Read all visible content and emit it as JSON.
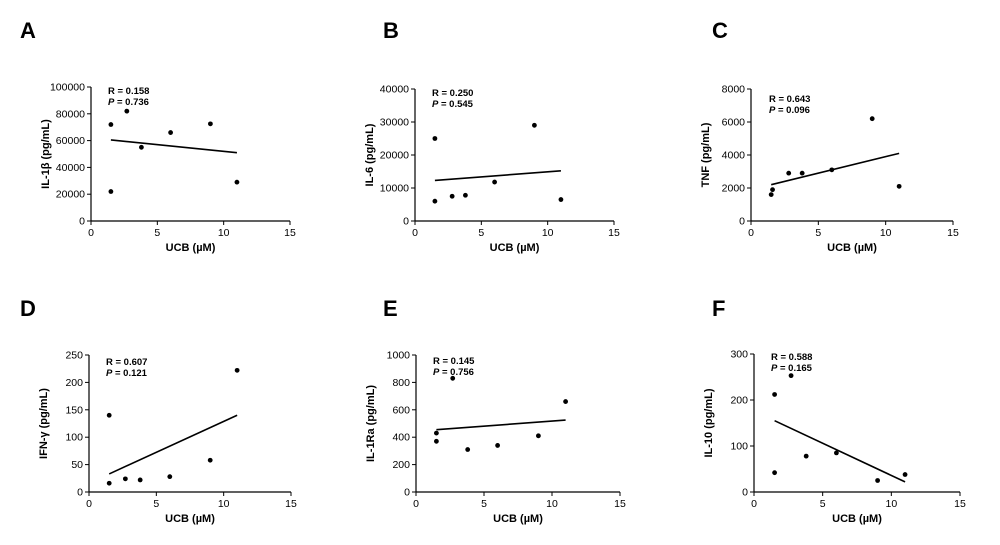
{
  "chart_data": [
    {
      "panel": "A",
      "type": "scatter",
      "ylabel": "IL-1β (pg/mL)",
      "xlabel": "UCB (µM)",
      "xlim": [
        0,
        15
      ],
      "ylim": [
        0,
        100000
      ],
      "xticks": [
        0,
        5,
        10,
        15
      ],
      "yticks": [
        0,
        20000,
        40000,
        60000,
        80000,
        100000
      ],
      "r_label": "R = 0.158",
      "p_prefix": "P",
      "p_value": " = 0.736",
      "points": [
        [
          1.5,
          72000
        ],
        [
          1.5,
          22000
        ],
        [
          2.7,
          82000
        ],
        [
          3.8,
          55000
        ],
        [
          6.0,
          66000
        ],
        [
          9.0,
          72500
        ],
        [
          11.0,
          29000
        ]
      ],
      "fit": [
        [
          1.5,
          60500
        ],
        [
          11.0,
          51000
        ]
      ]
    },
    {
      "panel": "B",
      "type": "scatter",
      "ylabel": "IL-6 (pg/mL)",
      "xlabel": "UCB (µM)",
      "xlim": [
        0,
        15
      ],
      "ylim": [
        0,
        40000
      ],
      "xticks": [
        0,
        5,
        10,
        15
      ],
      "yticks": [
        0,
        10000,
        20000,
        30000,
        40000
      ],
      "r_label": "R = 0.250",
      "p_prefix": "P",
      "p_value": " = 0.545",
      "points": [
        [
          1.5,
          25000
        ],
        [
          1.5,
          6000
        ],
        [
          2.8,
          7500
        ],
        [
          3.8,
          7800
        ],
        [
          6.0,
          11800
        ],
        [
          9.0,
          29000
        ],
        [
          11.0,
          6500
        ]
      ],
      "fit": [
        [
          1.5,
          12300
        ],
        [
          11.0,
          15200
        ]
      ]
    },
    {
      "panel": "C",
      "type": "scatter",
      "ylabel": "TNF (pg/mL)",
      "xlabel": "UCB (µM)",
      "xlim": [
        0,
        15
      ],
      "ylim": [
        0,
        8000
      ],
      "xticks": [
        0,
        5,
        10,
        15
      ],
      "yticks": [
        0,
        2000,
        4000,
        6000,
        8000
      ],
      "r_label": "R = 0.643",
      "p_prefix": "P",
      "p_value": " = 0.096",
      "points": [
        [
          1.6,
          1900
        ],
        [
          1.5,
          1600
        ],
        [
          2.8,
          2900
        ],
        [
          3.8,
          2900
        ],
        [
          6.0,
          3100
        ],
        [
          9.0,
          6200
        ],
        [
          11.0,
          2100
        ]
      ],
      "fit": [
        [
          1.5,
          2200
        ],
        [
          11.0,
          4100
        ]
      ]
    },
    {
      "panel": "D",
      "type": "scatter",
      "ylabel": "IFN-γ (pg/mL)",
      "xlabel": "UCB (µM)",
      "xlim": [
        0,
        15
      ],
      "ylim": [
        0,
        250
      ],
      "xticks": [
        0,
        5,
        10,
        15
      ],
      "yticks": [
        0,
        50,
        100,
        150,
        200,
        250
      ],
      "r_label": "R = 0.607",
      "p_prefix": "P",
      "p_value": " = 0.121",
      "points": [
        [
          1.5,
          140
        ],
        [
          1.5,
          16
        ],
        [
          2.7,
          24
        ],
        [
          3.8,
          22
        ],
        [
          6.0,
          28
        ],
        [
          9.0,
          58
        ],
        [
          11.0,
          222
        ]
      ],
      "fit": [
        [
          1.5,
          33
        ],
        [
          11.0,
          140
        ]
      ]
    },
    {
      "panel": "E",
      "type": "scatter",
      "ylabel": "IL-1Ra (pg/mL)",
      "xlabel": "UCB (µM)",
      "xlim": [
        0,
        15
      ],
      "ylim": [
        0,
        1000
      ],
      "xticks": [
        0,
        5,
        10,
        15
      ],
      "yticks": [
        0,
        200,
        400,
        600,
        800,
        1000
      ],
      "r_label": "R = 0.145",
      "p_prefix": "P",
      "p_value": " = 0.756",
      "points": [
        [
          1.5,
          430
        ],
        [
          1.5,
          370
        ],
        [
          2.7,
          830
        ],
        [
          3.8,
          310
        ],
        [
          6.0,
          340
        ],
        [
          9.0,
          410
        ],
        [
          11.0,
          660
        ]
      ],
      "fit": [
        [
          1.5,
          455
        ],
        [
          11.0,
          525
        ]
      ]
    },
    {
      "panel": "F",
      "type": "scatter",
      "ylabel": "IL-10 (pg/mL)",
      "xlabel": "UCB (µM)",
      "xlim": [
        0,
        15
      ],
      "ylim": [
        0,
        300
      ],
      "xticks": [
        0,
        5,
        10,
        15
      ],
      "yticks": [
        0,
        100,
        200,
        300
      ],
      "r_label": "R = 0.588",
      "p_prefix": "P",
      "p_value": " = 0.165",
      "points": [
        [
          1.5,
          212
        ],
        [
          1.5,
          42
        ],
        [
          2.7,
          253
        ],
        [
          3.8,
          78
        ],
        [
          6.0,
          85
        ],
        [
          9.0,
          25
        ],
        [
          11.0,
          38
        ]
      ],
      "fit": [
        [
          1.5,
          155
        ],
        [
          11.0,
          22
        ]
      ]
    }
  ]
}
